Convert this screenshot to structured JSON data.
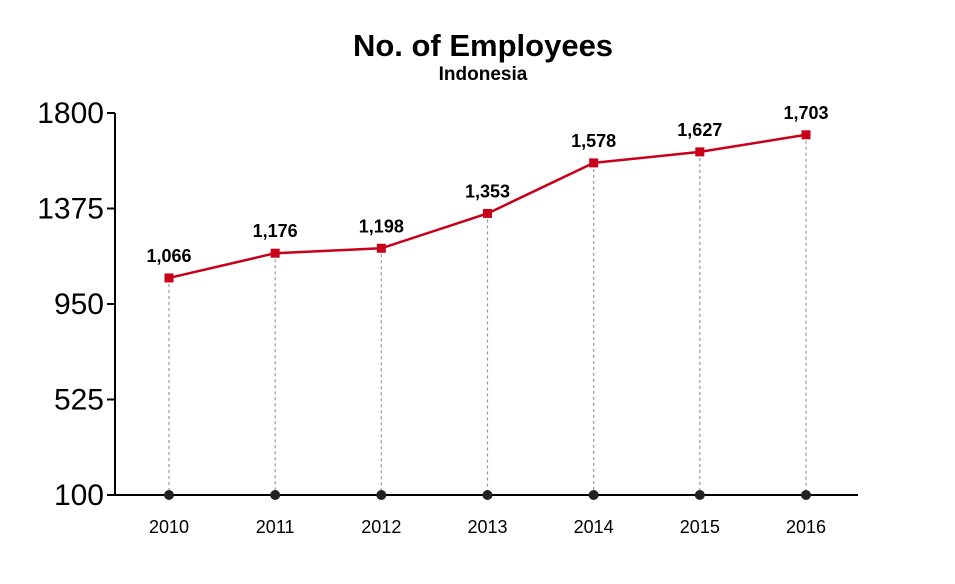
{
  "chart_data": {
    "type": "line",
    "title": "No. of Employees",
    "subtitle": "Indonesia",
    "categories": [
      "2010",
      "2011",
      "2012",
      "2013",
      "2014",
      "2015",
      "2016"
    ],
    "series": [
      {
        "values": [
          1066,
          1176,
          1198,
          1353,
          1578,
          1627,
          1703
        ],
        "labels": [
          "1,066",
          "1,176",
          "1,198",
          "1,353",
          "1,578",
          "1,627",
          "1,703"
        ]
      }
    ],
    "y_ticks": [
      "1800",
      "1375",
      "950",
      "525",
      "100"
    ],
    "ylim": [
      100,
      1800
    ],
    "grid": false,
    "colors": {
      "line": "#c8001a",
      "axis": "#000000",
      "drop_line": "#999999",
      "base_marker": "#222222"
    }
  }
}
